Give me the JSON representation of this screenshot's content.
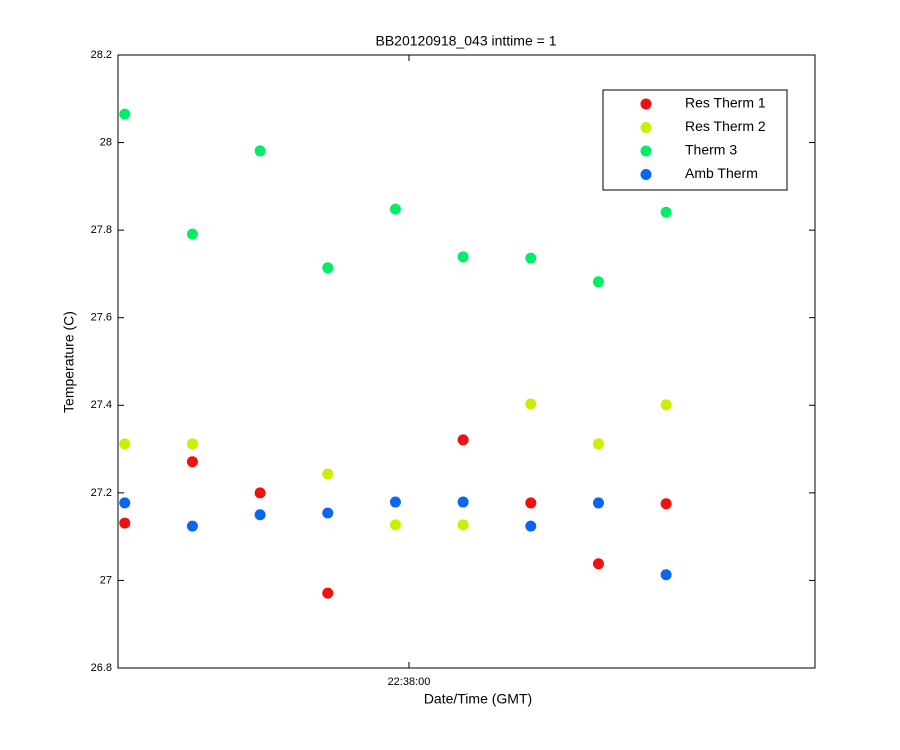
{
  "chart_data": {
    "type": "scatter",
    "title": "BB20120918_043 inttime = 1",
    "x_label": "Date/Time (GMT)",
    "y_label": "Temperature (C)",
    "x": [
      81438,
      81448,
      81458,
      81468,
      81478,
      81488,
      81498,
      81508,
      81518
    ],
    "xlim": [
      81437,
      81540
    ],
    "xticks": [
      {
        "value": 81480,
        "label": "22:38:00"
      }
    ],
    "ylim": [
      26.8,
      28.2
    ],
    "yticks": [
      26.8,
      27,
      27.2,
      27.4,
      27.6,
      27.8,
      28,
      28.2
    ],
    "legend": "upper-right",
    "series": [
      {
        "name": "Res Therm 1",
        "color": "#f01010",
        "values": [
          27.131,
          27.271,
          27.2,
          26.971,
          null,
          27.321,
          27.177,
          27.038,
          27.175
        ]
      },
      {
        "name": "Res Therm 2",
        "color": "#ccee00",
        "values": [
          27.312,
          27.312,
          null,
          27.243,
          27.127,
          27.127,
          27.403,
          27.312,
          27.401
        ]
      },
      {
        "name": "Therm 3",
        "color": "#00ee66",
        "values": [
          28.065,
          27.791,
          27.981,
          27.714,
          27.848,
          27.739,
          27.736,
          27.682,
          27.841
        ]
      },
      {
        "name": "Amb Therm",
        "color": "#0a66ee",
        "values": [
          27.177,
          27.124,
          27.15,
          27.154,
          27.179,
          27.179,
          27.124,
          27.177,
          27.013
        ]
      }
    ]
  }
}
